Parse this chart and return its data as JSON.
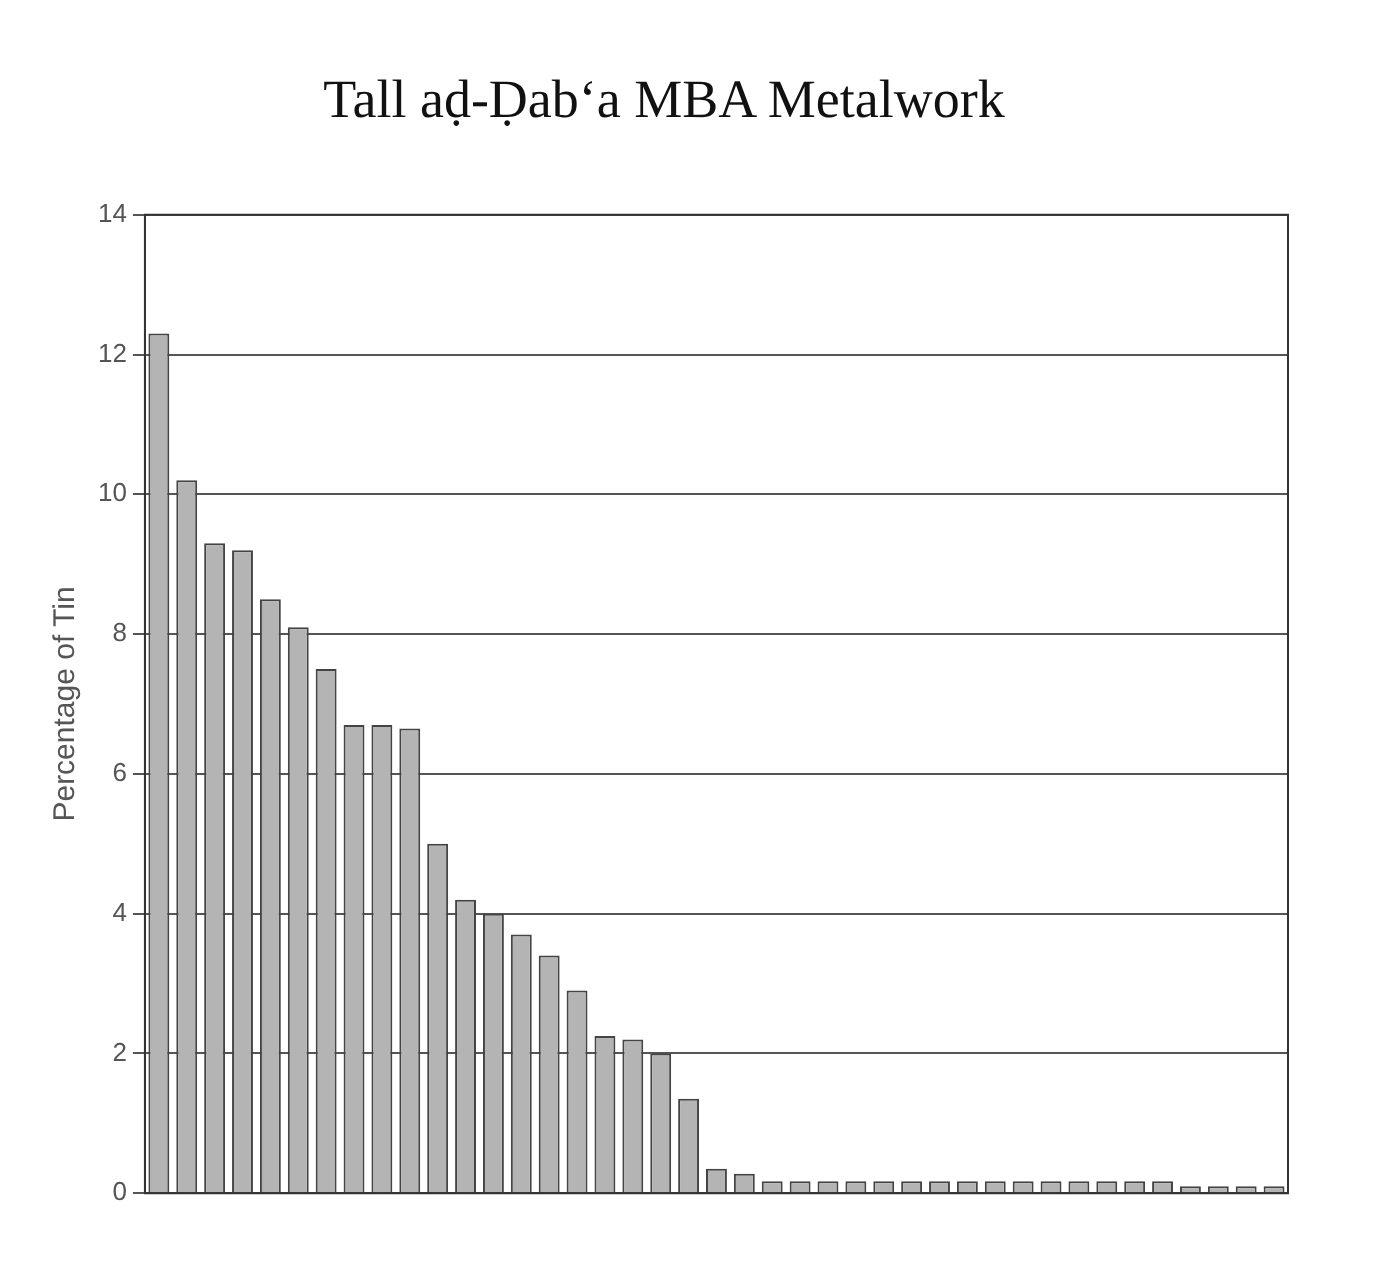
{
  "chart_data": {
    "type": "bar",
    "title": "Tall aḍ-Ḍab‘a MBA Metalwork",
    "ylabel": "Percentage of Tin",
    "categories": [
      null,
      null,
      null,
      null,
      null,
      null,
      null,
      null,
      null,
      null,
      null,
      null,
      null,
      null,
      null,
      null,
      null,
      null,
      null,
      null,
      null,
      null,
      null,
      null,
      null,
      null,
      null,
      null,
      null,
      null,
      null,
      null,
      null,
      null,
      null,
      null,
      null,
      null,
      null,
      null,
      null
    ],
    "values": [
      12.3,
      10.2,
      9.3,
      9.2,
      8.5,
      8.1,
      7.5,
      6.7,
      6.7,
      6.65,
      5.0,
      4.2,
      4.0,
      3.7,
      3.4,
      2.9,
      2.25,
      2.2,
      2.0,
      1.35,
      0.35,
      0.28,
      0.17,
      0.17,
      0.17,
      0.17,
      0.17,
      0.17,
      0.17,
      0.17,
      0.17,
      0.17,
      0.17,
      0.17,
      0.17,
      0.17,
      0.17,
      0.1,
      0.1,
      0.1,
      0.1
    ],
    "color": "#b4b4b4",
    "ylim": [
      0,
      14
    ],
    "yticks": [
      0,
      2,
      4,
      6,
      8,
      10,
      12,
      14
    ],
    "grid": "y",
    "legend": false
  }
}
